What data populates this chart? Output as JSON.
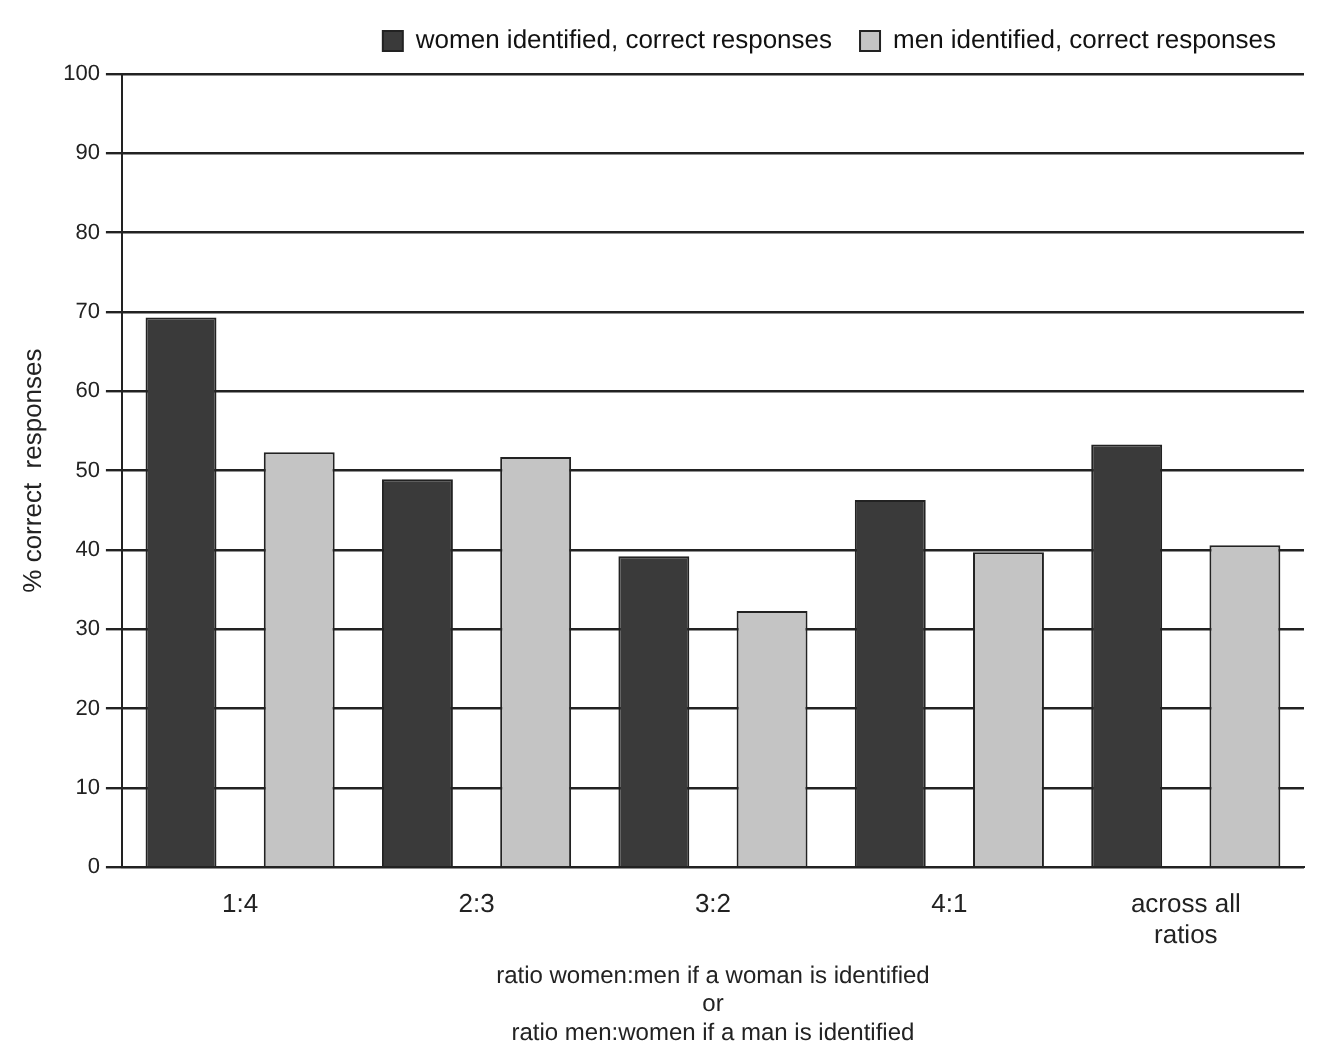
{
  "chart_data": {
    "type": "bar",
    "categories": [
      "1:4",
      "2:3",
      "3:2",
      "4:1",
      "across all ratios"
    ],
    "series": [
      {
        "name": "women identified, correct responses",
        "color": "#3a3a3a",
        "values": [
          69.3,
          48.9,
          39.2,
          46.3,
          53.3
        ]
      },
      {
        "name": "men identified, correct responses",
        "color": "#c4c4c4",
        "values": [
          52.3,
          51.7,
          32.3,
          39.7,
          40.6
        ]
      }
    ],
    "ylabel": "% correct  responses",
    "xlabel": "ratio women:men if a woman is identified\nor\nratio men:women if a man is identified",
    "ylim": [
      0,
      100
    ],
    "yticks": [
      0,
      10,
      20,
      30,
      40,
      50,
      60,
      70,
      80,
      90,
      100
    ],
    "grid": "y",
    "legend": "top right"
  }
}
